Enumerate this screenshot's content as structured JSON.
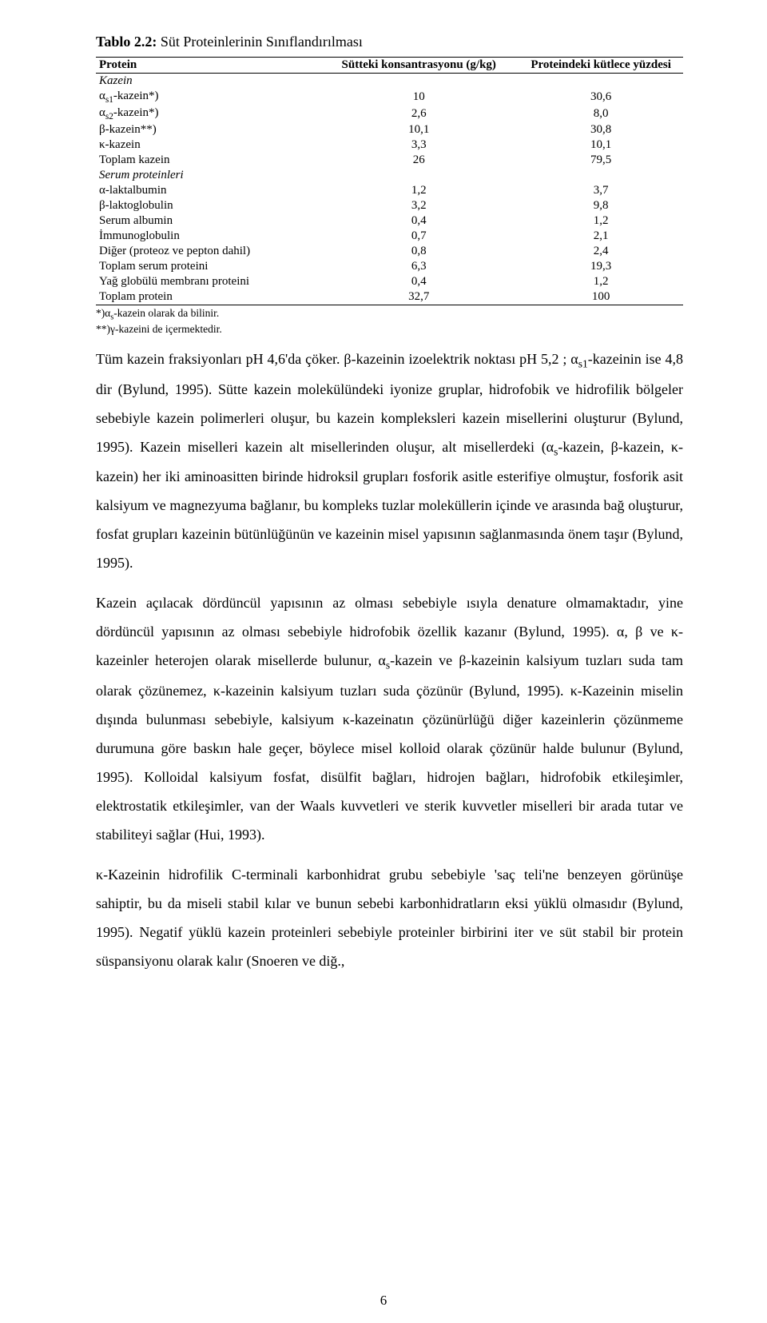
{
  "caption": {
    "label": "Tablo 2.2:",
    "text": " Süt Proteinlerinin Sınıflandırılması"
  },
  "table": {
    "headers": [
      "Protein",
      "Sütteki konsantrasyonu (g/kg)",
      "Proteindeki kütlece yüzdesi"
    ],
    "section1": "Kazein",
    "rows1": [
      [
        "α",
        "s1",
        "-kazein*)",
        "10",
        "30,6"
      ],
      [
        "α",
        "s2",
        "-kazein*)",
        "2,6",
        "8,0"
      ],
      [
        "β-kazein**)",
        "",
        "",
        "10,1",
        "30,8"
      ],
      [
        "κ-kazein",
        "",
        "",
        "3,3",
        "10,1"
      ],
      [
        "Toplam kazein",
        "",
        "",
        "26",
        "79,5"
      ]
    ],
    "section2": "Serum proteinleri",
    "rows2": [
      [
        "α-laktalbumin",
        "1,2",
        "3,7"
      ],
      [
        "β-laktoglobulin",
        "3,2",
        "9,8"
      ],
      [
        "Serum albumin",
        "0,4",
        "1,2"
      ],
      [
        "İmmunoglobulin",
        "0,7",
        "2,1"
      ],
      [
        "Diğer (proteoz ve pepton dahil)",
        "0,8",
        "2,4"
      ],
      [
        "Toplam serum proteini",
        "6,3",
        "19,3"
      ],
      [
        "Yağ globülü membranı proteini",
        "0,4",
        "1,2"
      ],
      [
        "Toplam protein",
        "32,7",
        "100"
      ]
    ],
    "footnote1_pre": "*)α",
    "footnote1_sub": "s",
    "footnote1_post": "-kazein olarak da bilinir.",
    "footnote2": "**)γ-kazeini de içermektedir."
  },
  "para1": {
    "a": "Tüm kazein fraksiyonları pH 4,6'da çöker. β-kazeinin izoelektrik noktası pH 5,2 ; α",
    "sub1": "s1",
    "b": "-kazeinin ise 4,8 dir (Bylund, 1995). Sütte kazein molekülündeki iyonize gruplar, hidrofobik ve hidrofilik bölgeler sebebiyle kazein polimerleri oluşur, bu kazein kompleksleri kazein misellerini oluşturur (Bylund, 1995). Kazein miselleri kazein alt misellerinden oluşur, alt misellerdeki  (α",
    "sub2": "s",
    "c": "-kazein, β-kazein, κ-kazein) her iki aminoasitten birinde hidroksil grupları fosforik asitle esterifiye olmuştur, fosforik asit kalsiyum ve magnezyuma bağlanır, bu kompleks tuzlar moleküllerin içinde ve arasında bağ oluşturur, fosfat grupları kazeinin bütünlüğünün ve kazeinin misel yapısının sağlanmasında önem taşır (Bylund, 1995)."
  },
  "para2": {
    "a": "Kazein açılacak dördüncül yapısının az olması sebebiyle ısıyla denature olmamaktadır, yine dördüncül yapısının az olması sebebiyle hidrofobik özellik kazanır (Bylund, 1995). α, β ve κ-kazeinler heterojen olarak misellerde bulunur, α",
    "sub1": "s",
    "b": "-kazein ve β-kazeinin kalsiyum tuzları suda tam olarak çözünemez, κ-kazeinin kalsiyum tuzları suda çözünür (Bylund, 1995). κ-Kazeinin miselin dışında bulunması sebebiyle, kalsiyum κ-kazeinatın çözünürlüğü diğer kazeinlerin çözünmeme durumuna göre baskın hale geçer, böylece misel kolloid olarak çözünür halde bulunur (Bylund, 1995). Kolloidal kalsiyum fosfat, disülfit bağları, hidrojen bağları, hidrofobik etkileşimler, elektrostatik etkileşimler, van der Waals kuvvetleri ve sterik kuvvetler miselleri bir arada tutar ve stabiliteyi sağlar (Hui, 1993)."
  },
  "para3": "κ-Kazeinin hidrofilik C-terminali karbonhidrat grubu sebebiyle 'saç teli'ne benzeyen görünüşe sahiptir, bu da miseli stabil kılar ve bunun sebebi karbonhidratların eksi yüklü olmasıdır (Bylund, 1995). Negatif yüklü kazein proteinleri sebebiyle proteinler birbirini iter ve süt stabil bir protein süspansiyonu olarak kalır (Snoeren ve diğ.,",
  "pagenum": "6"
}
